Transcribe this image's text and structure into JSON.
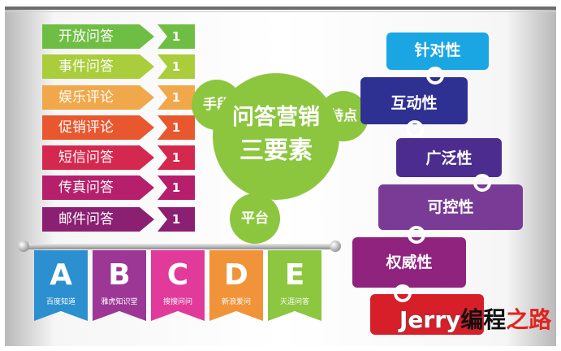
{
  "ribbons": [
    {
      "label": "开放问答",
      "value": "1",
      "color": "#6fbe44"
    },
    {
      "label": "事件问答",
      "value": "1",
      "color": "#a9cd3b"
    },
    {
      "label": "娱乐评论",
      "value": "1",
      "color": "#f1a84b"
    },
    {
      "label": "促销评论",
      "value": "1",
      "color": "#e8572e"
    },
    {
      "label": "短信问答",
      "value": "1",
      "color": "#d5284f"
    },
    {
      "label": "传真问答",
      "value": "1",
      "color": "#b51f6c"
    },
    {
      "label": "邮件问答",
      "value": "1",
      "color": "#8b1f72"
    }
  ],
  "center": {
    "line1": "问答营销",
    "line2": "三要素"
  },
  "bubbles": {
    "means": "手段",
    "features": "特点",
    "platform": "平台"
  },
  "platforms": [
    {
      "letter": "A",
      "label": "百度知道",
      "color": "#2b8fd0"
    },
    {
      "letter": "B",
      "label": "雅虎知识堂",
      "color": "#9c3795"
    },
    {
      "letter": "C",
      "label": "搜搜问问",
      "color": "#e13a9a"
    },
    {
      "letter": "D",
      "label": "新浪爱问",
      "color": "#f19338"
    },
    {
      "letter": "E",
      "label": "天涯问答",
      "color": "#8dc63f"
    }
  ],
  "traits": [
    {
      "label": "针对性",
      "color": "#19a6e3"
    },
    {
      "label": "互动性",
      "color": "#2f3192"
    },
    {
      "label": "广泛性",
      "color": "#4c2d8f"
    },
    {
      "label": "可控性",
      "color": "#7a3b97"
    },
    {
      "label": "权威性",
      "color": "#90237d"
    },
    {
      "label": "",
      "color": "#d71f2a"
    }
  ],
  "watermark": {
    "part1": "Jerry",
    "part2": "编程",
    "part3": "之路"
  }
}
